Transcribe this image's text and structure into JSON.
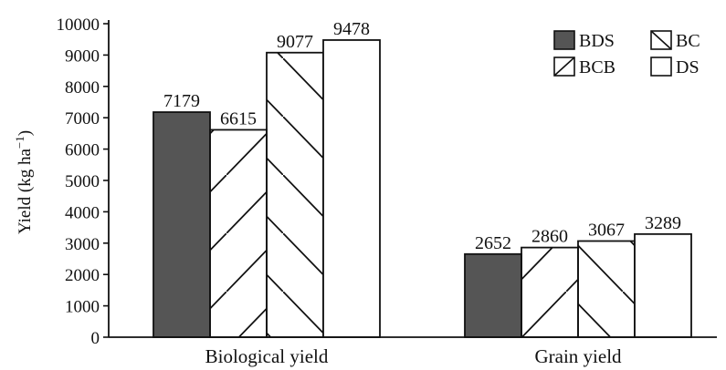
{
  "chart_data": {
    "type": "bar",
    "categories": [
      "Biological yield",
      "Grain yield"
    ],
    "series": [
      {
        "name": "BDS",
        "values": [
          7179,
          2652
        ],
        "fill": "solid-dark"
      },
      {
        "name": "BCB",
        "values": [
          6615,
          2860
        ],
        "fill": "hatch-up"
      },
      {
        "name": "BC",
        "values": [
          9077,
          3067
        ],
        "fill": "hatch-down"
      },
      {
        "name": "DS",
        "values": [
          9478,
          3289
        ],
        "fill": "white"
      }
    ],
    "title": "",
    "xlabel": "",
    "ylabel": "Yield (kg ha",
    "ylabel_sup": "−1",
    "ylabel_close": ")",
    "ylim": [
      0,
      10000
    ],
    "yticks": [
      "0",
      "1000",
      "2000",
      "3000",
      "4000",
      "5000",
      "6000",
      "7000",
      "8000",
      "9000",
      "10000"
    ],
    "legend": {
      "position": "top-right",
      "order": [
        "BDS",
        "BC",
        "BCB",
        "DS"
      ]
    },
    "grid": false
  },
  "colors": {
    "solid_dark": "#555555",
    "edge": "#111111",
    "background": "#ffffff"
  }
}
